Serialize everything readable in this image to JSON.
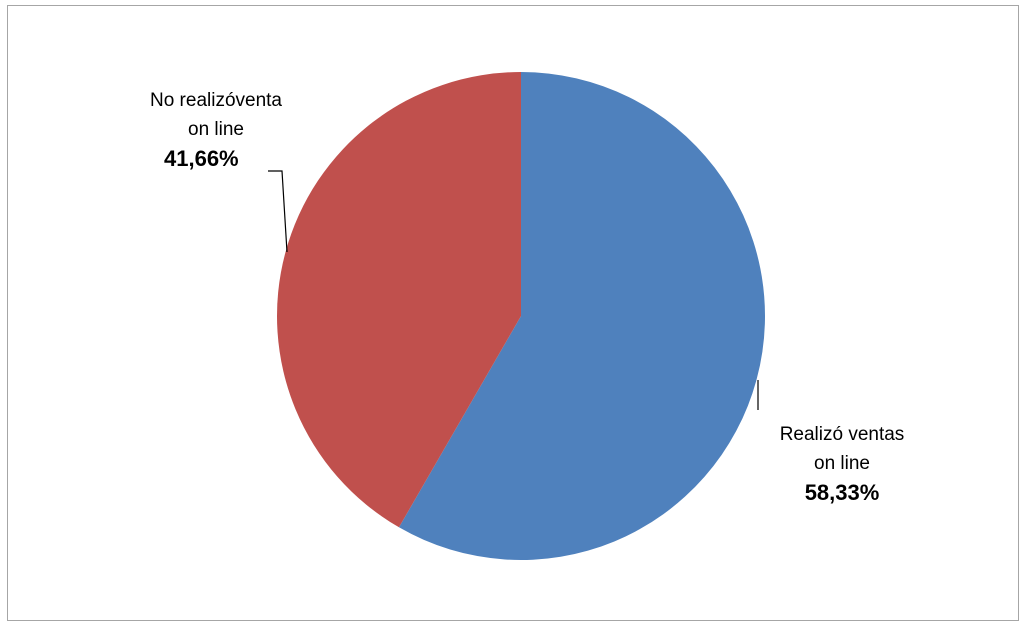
{
  "chart_data": {
    "type": "pie",
    "slices": [
      {
        "label": "Realizó ventas on line",
        "label_lines": [
          "Realizó  ventas",
          "on line"
        ],
        "value": 58.33,
        "value_label": "58,33%",
        "color": "#4f81bd"
      },
      {
        "label": "No realizóventa on line",
        "label_lines": [
          "No realizóventa",
          "on line"
        ],
        "value": 41.66,
        "value_label": "41,66%",
        "color": "#c0504d"
      }
    ],
    "start_angle_deg": 0,
    "direction": "clockwise",
    "data_labels": "outside with leader lines",
    "legend": "none"
  }
}
